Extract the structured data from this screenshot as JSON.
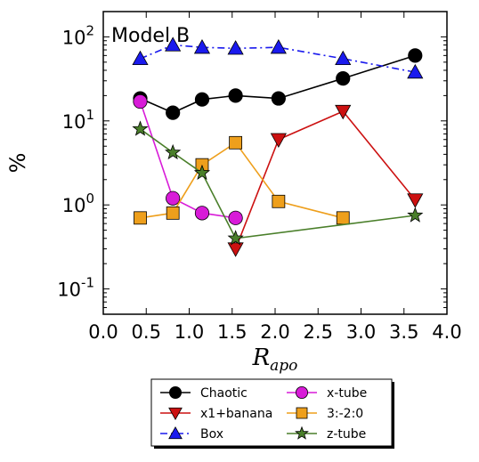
{
  "chart_data": {
    "type": "line",
    "title": "Model B",
    "xlabel": "R",
    "xlabel_subscript": "apo",
    "ylabel": "%",
    "xlim": [
      0.0,
      4.0
    ],
    "ylim": [
      0.05,
      200
    ],
    "yscale": "log",
    "grid": false,
    "legend_position": "below plot, two columns",
    "x_tick_labels": [
      "0.0",
      "0.5",
      "1.0",
      "1.5",
      "2.0",
      "2.5",
      "3.0",
      "3.5",
      "4.0"
    ],
    "y_tick_labels": [
      {
        "base": "10",
        "exp": "-1",
        "value": 0.1
      },
      {
        "base": "10",
        "exp": "0",
        "value": 1
      },
      {
        "base": "10",
        "exp": "1",
        "value": 10
      },
      {
        "base": "10",
        "exp": "2",
        "value": 100
      }
    ],
    "series": [
      {
        "name": "Chaotic",
        "color": "#000000",
        "marker": "circle",
        "line": "solid",
        "x": [
          0.43,
          0.81,
          1.15,
          1.54,
          2.04,
          2.79,
          3.63
        ],
        "y": [
          18.5,
          12.5,
          18,
          20,
          18.5,
          32,
          60
        ]
      },
      {
        "name": "x1+banana",
        "color": "#cc1111",
        "marker": "triangle-down",
        "line": "solid",
        "x": [
          1.54,
          2.04,
          2.79,
          3.63
        ],
        "y": [
          0.3,
          6,
          13,
          1.15
        ]
      },
      {
        "name": "Box",
        "color": "#1a1aee",
        "marker": "triangle-up",
        "line": "dashdot",
        "x": [
          0.43,
          0.81,
          1.15,
          1.54,
          2.04,
          2.79,
          3.63
        ],
        "y": [
          55,
          80,
          75,
          73,
          75,
          55,
          38
        ]
      },
      {
        "name": "x-tube",
        "color": "#d81bd8",
        "marker": "circle",
        "line": "solid",
        "x": [
          0.43,
          0.81,
          1.15,
          1.54
        ],
        "y": [
          17,
          1.2,
          0.8,
          0.7
        ]
      },
      {
        "name": "3:-2:0",
        "color": "#ee9f1c",
        "marker": "square",
        "line": "solid",
        "x": [
          0.43,
          0.81,
          1.15,
          1.54,
          2.04,
          2.79
        ],
        "y": [
          0.7,
          0.8,
          3.0,
          5.5,
          1.1,
          0.7
        ]
      },
      {
        "name": "z-tube",
        "color": "#4a7f2a",
        "marker": "star",
        "line": "solid",
        "x": [
          0.43,
          0.81,
          1.15,
          1.54,
          3.63
        ],
        "y": [
          8,
          4.2,
          2.4,
          0.4,
          0.75
        ]
      }
    ],
    "legend_order": [
      "Chaotic",
      "x-tube",
      "x1+banana",
      "3:-2:0",
      "Box",
      "z-tube"
    ]
  }
}
